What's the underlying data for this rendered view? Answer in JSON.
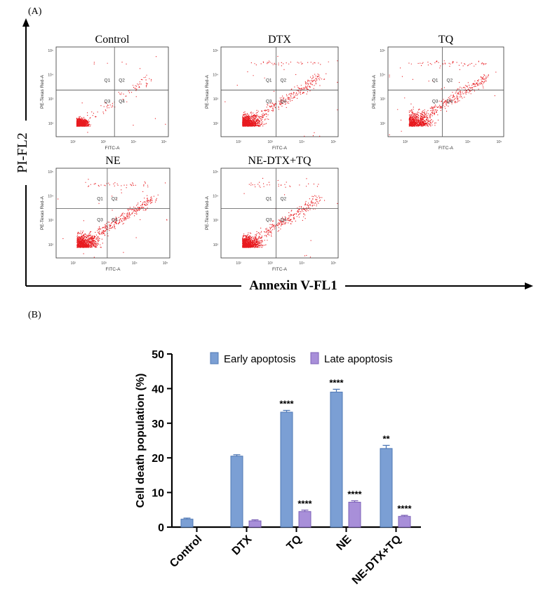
{
  "panel_a": {
    "label": "(A)",
    "y_axis_label": "PI-FL2",
    "x_axis_label": "Annexin V-FL1",
    "plot_y_axis_label": "PE-Texas Red-A",
    "plot_x_axis_label": "FITC-A",
    "quadrant_labels": [
      "Q1",
      "Q2",
      "Q3",
      "Q4"
    ],
    "tick_labels": [
      "10²",
      "10³",
      "10⁴",
      "10⁵"
    ],
    "plots": [
      {
        "title": "Control"
      },
      {
        "title": "DTX"
      },
      {
        "title": "TQ"
      },
      {
        "title": "NE"
      },
      {
        "title": "NE-DTX+TQ"
      }
    ]
  },
  "panel_b": {
    "label": "(B)"
  },
  "chart_data": {
    "type": "bar",
    "title": "",
    "xlabel": "",
    "ylabel": "Cell death population (%)",
    "ylim": [
      0,
      50
    ],
    "yticks": [
      "0",
      "10",
      "20",
      "30",
      "40",
      "50"
    ],
    "categories": [
      "Control",
      "DTX",
      "TQ",
      "NE",
      "NE-DTX+TQ"
    ],
    "legend_position": "top",
    "series": [
      {
        "name": "Early apoptosis",
        "color": "#7b9fd4",
        "values": [
          2.3,
          20.5,
          33.2,
          39.0,
          22.7
        ],
        "errors": [
          0.3,
          0.4,
          0.5,
          0.8,
          0.9
        ],
        "annotations": [
          "",
          "",
          "****",
          "****",
          "**"
        ]
      },
      {
        "name": "Late apoptosis",
        "color": "#a88fd9",
        "values": [
          0.0,
          1.8,
          4.5,
          7.2,
          3.1
        ],
        "errors": [
          0.0,
          0.3,
          0.4,
          0.4,
          0.3
        ],
        "annotations": [
          "",
          "",
          "****",
          "****",
          "****"
        ]
      }
    ]
  }
}
